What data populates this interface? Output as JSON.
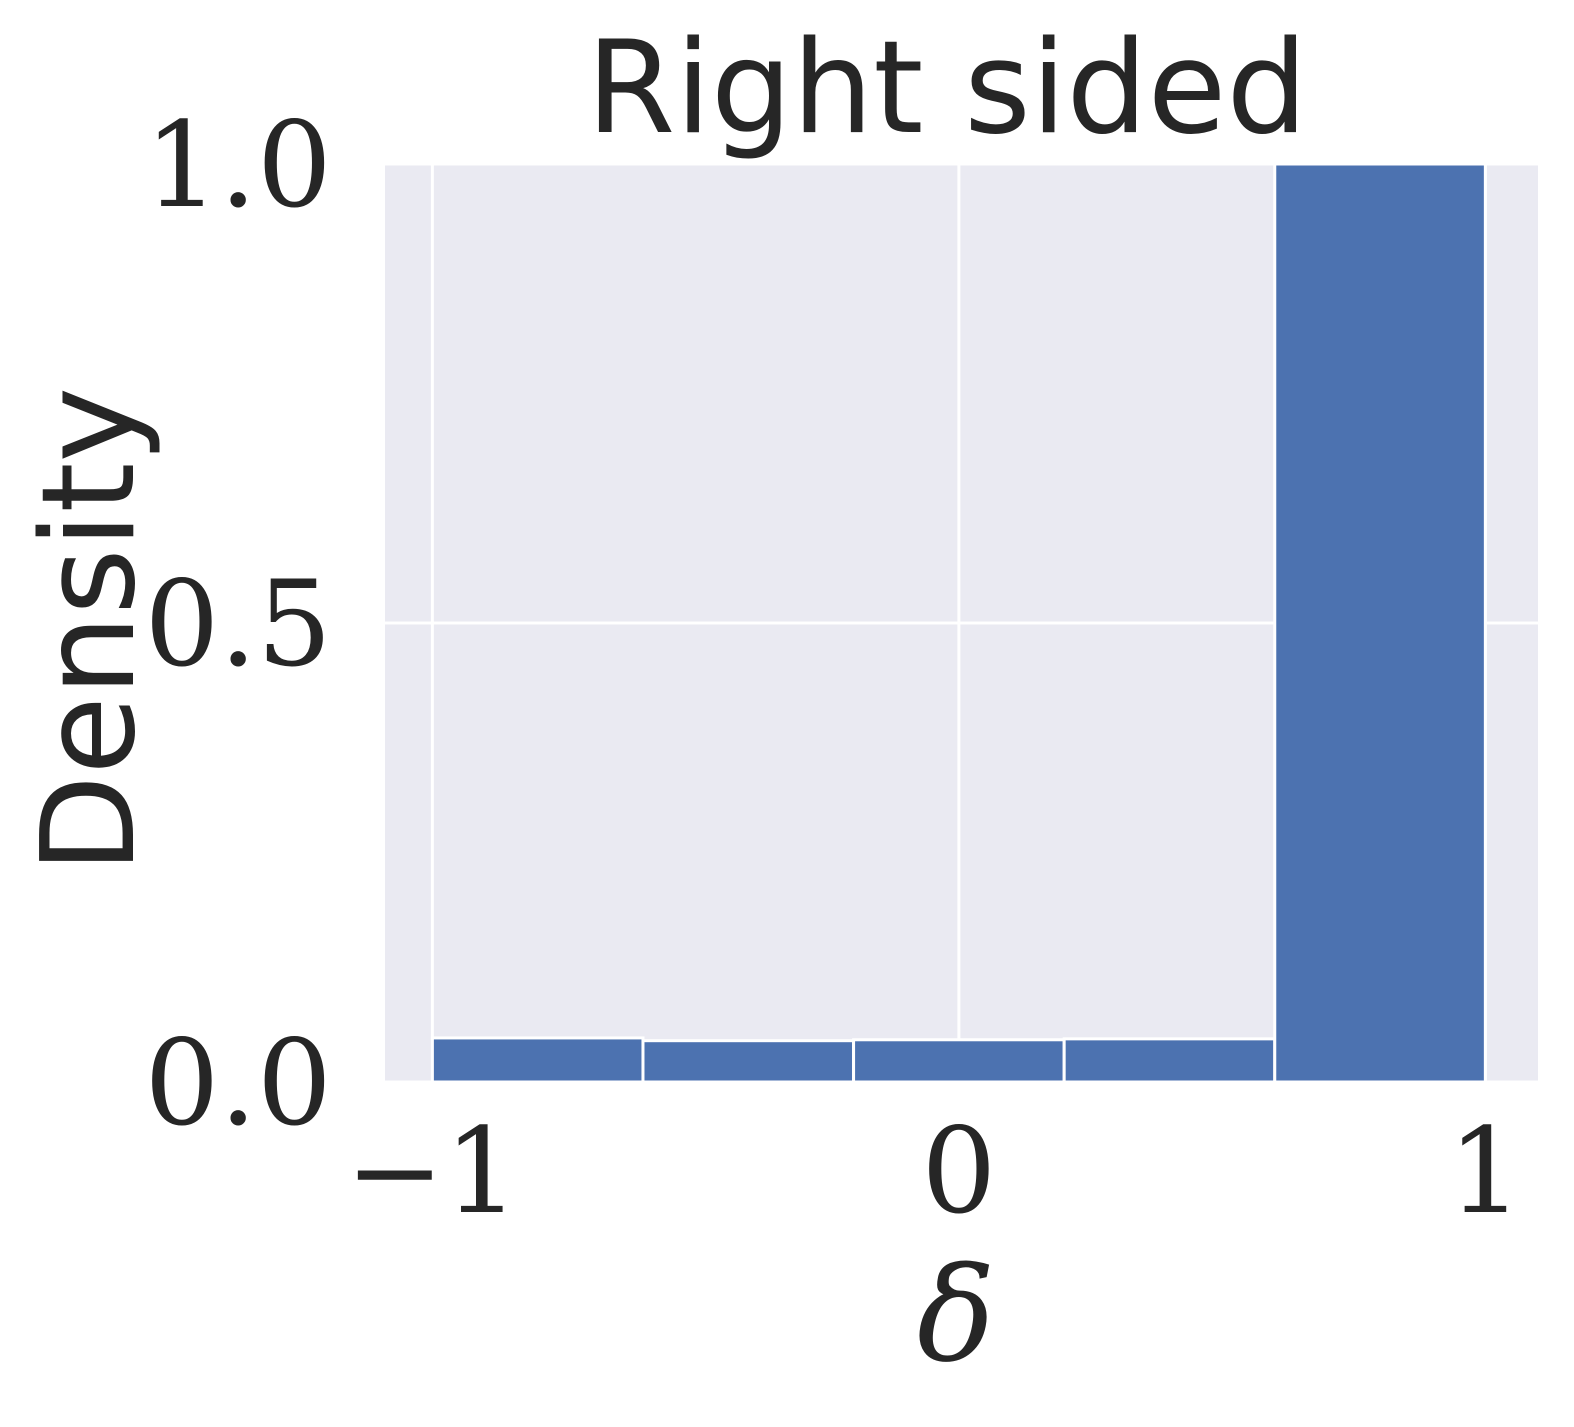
{
  "chart_data": {
    "type": "bar",
    "title": "Right sided",
    "xlabel": "δ",
    "ylabel": "Density",
    "xlim": [
      -1.09,
      1.1
    ],
    "ylim": [
      0,
      1.0
    ],
    "x_ticks": [
      {
        "value": -1,
        "label": "−1"
      },
      {
        "value": 0,
        "label": "0"
      },
      {
        "value": 1,
        "label": "1"
      }
    ],
    "y_ticks": [
      {
        "value": 0.0,
        "label": "0.0"
      },
      {
        "value": 0.5,
        "label": "0.5"
      },
      {
        "value": 1.0,
        "label": "1.0"
      }
    ],
    "bins": [
      {
        "x0": -1.0,
        "x1": -0.6,
        "value": 0.048
      },
      {
        "x0": -0.6,
        "x1": -0.2,
        "value": 0.045
      },
      {
        "x0": -0.2,
        "x1": 0.2,
        "value": 0.046
      },
      {
        "x0": 0.2,
        "x1": 0.6,
        "value": 0.047
      },
      {
        "x0": 0.6,
        "x1": 1.0,
        "value": 1.0
      }
    ],
    "grid": true,
    "colors": {
      "bar": "#4c72b0",
      "background": "#eaeaf2",
      "grid": "#ffffff",
      "text": "#262626"
    }
  }
}
